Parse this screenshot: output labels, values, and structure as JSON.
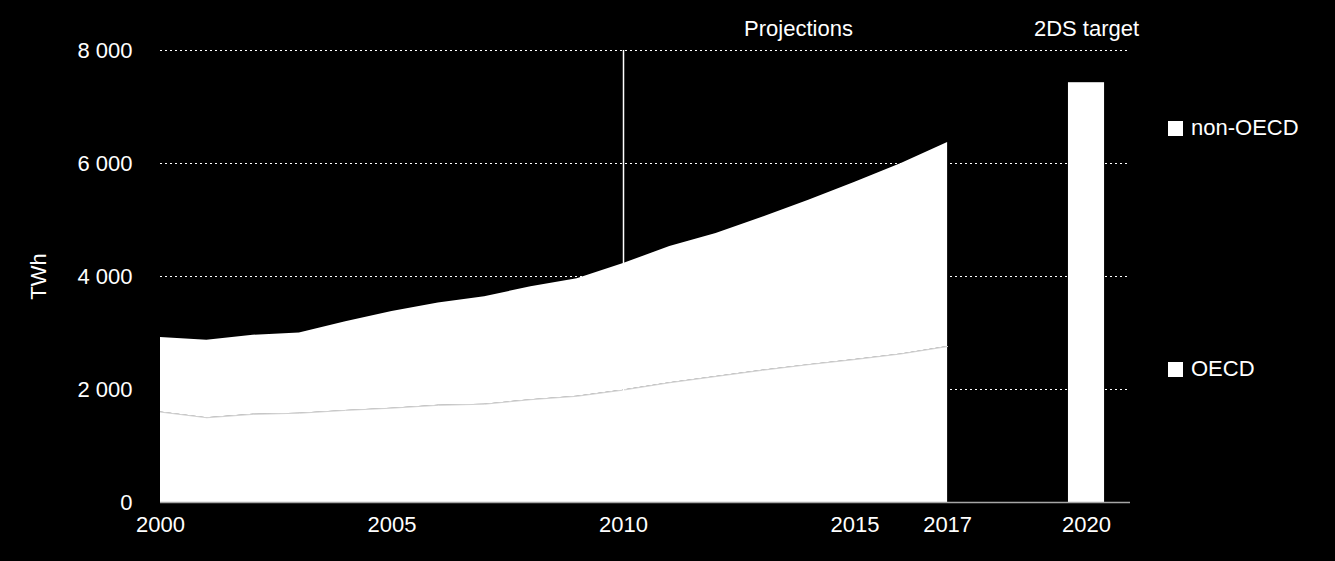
{
  "chart_data": {
    "type": "area",
    "stacked": true,
    "y_label": "TWh",
    "x": [
      2000,
      2001,
      2002,
      2003,
      2004,
      2005,
      2006,
      2007,
      2008,
      2009,
      2010,
      2011,
      2012,
      2013,
      2014,
      2015,
      2016,
      2017,
      2020
    ],
    "series": [
      {
        "name": "OECD",
        "type": "area",
        "color": "#ffffff",
        "values": [
          1600,
          1500,
          1560,
          1580,
          1630,
          1670,
          1720,
          1740,
          1820,
          1880,
          1990,
          2120,
          2230,
          2340,
          2440,
          2530,
          2630,
          2760,
          null
        ]
      },
      {
        "name": "non-OECD",
        "type": "area",
        "color": "#ffffff",
        "values": [
          1320,
          1370,
          1400,
          1420,
          1570,
          1710,
          1810,
          1900,
          2000,
          2080,
          2240,
          2410,
          2530,
          2710,
          2910,
          3140,
          3370,
          3610,
          null
        ]
      },
      {
        "name": "2DS target",
        "type": "bar",
        "color": "#ffffff",
        "values": [
          null,
          null,
          null,
          null,
          null,
          null,
          null,
          null,
          null,
          null,
          null,
          null,
          null,
          null,
          null,
          null,
          null,
          null,
          7430
        ]
      }
    ],
    "xlim": [
      2000,
      2020.95
    ],
    "xticks": [
      2000,
      2005,
      2010,
      2015,
      2017,
      2020
    ],
    "ylim": [
      0,
      8000
    ],
    "yticks": [
      0,
      {
        "value": 2000,
        "label": "2 000"
      },
      {
        "value": 4000,
        "label": "4 000"
      },
      {
        "value": 6000,
        "label": "6 000"
      },
      {
        "value": 8000,
        "label": "8 000"
      }
    ],
    "grid": true,
    "legend": "right",
    "annotations": [
      {
        "text": "Projections",
        "x": 2010
      }
    ]
  }
}
